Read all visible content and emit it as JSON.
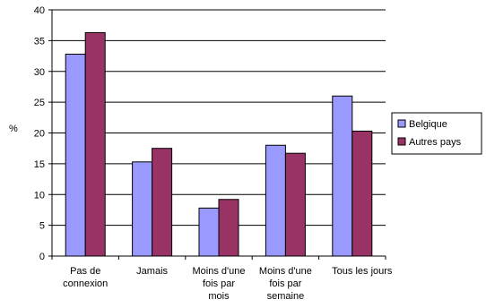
{
  "chart_data": {
    "type": "bar",
    "ylabel": "%",
    "xlabel": "",
    "ylim": [
      0,
      40
    ],
    "yticks": [
      0,
      5,
      10,
      15,
      20,
      25,
      30,
      35,
      40
    ],
    "grid": true,
    "legend": "right",
    "categories": [
      [
        "Pas de",
        "connexion"
      ],
      [
        "Jamais"
      ],
      [
        "Moins d'une",
        "fois par",
        "mois"
      ],
      [
        "Moins d'une",
        "fois par",
        "semaine"
      ],
      [
        "Tous les  jours"
      ]
    ],
    "series": [
      {
        "name": "Belgique",
        "color": "#9999ff",
        "values": [
          32.8,
          15.3,
          7.8,
          18.0,
          26.0
        ]
      },
      {
        "name": "Autres pays",
        "color": "#993366",
        "values": [
          36.3,
          17.5,
          9.2,
          16.7,
          20.3
        ]
      }
    ]
  }
}
